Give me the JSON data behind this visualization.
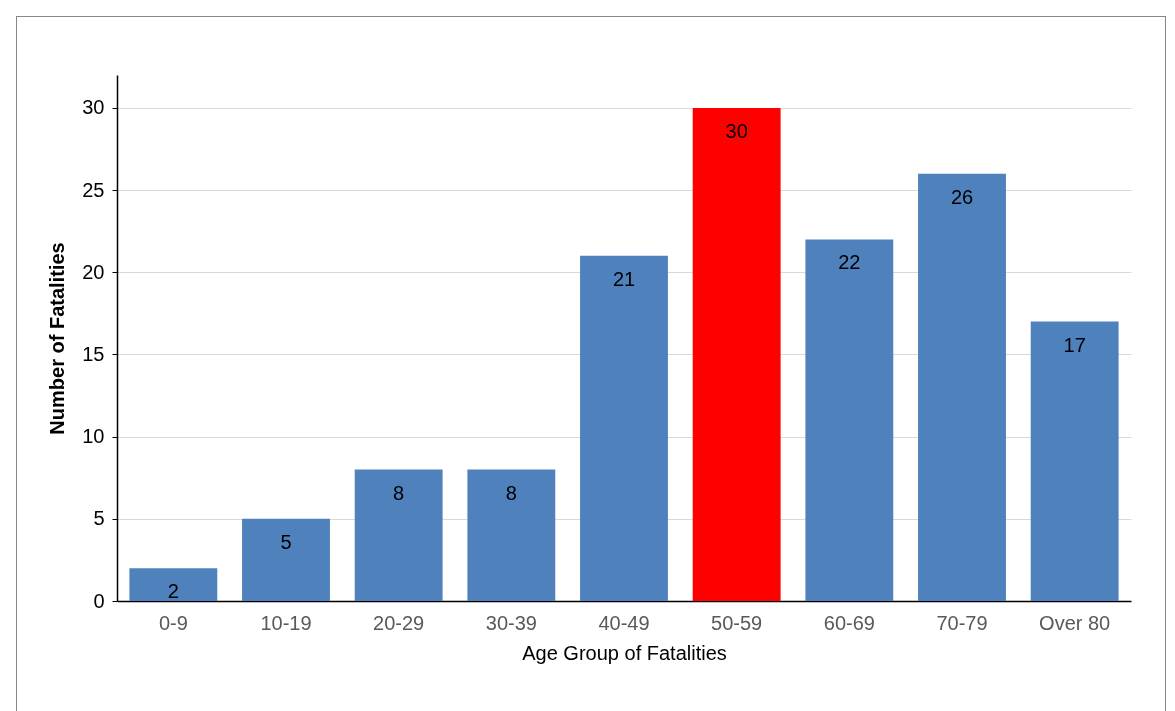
{
  "chart_data": {
    "type": "bar",
    "xlabel": "Age Group of Fatalities",
    "ylabel": "Number of Fatalities",
    "categories": [
      "0-9",
      "10-19",
      "20-29",
      "30-39",
      "40-49",
      "50-59",
      "60-69",
      "70-79",
      "Over 80"
    ],
    "values": [
      2,
      5,
      8,
      8,
      21,
      30,
      22,
      26,
      17
    ],
    "colors": [
      "#4f81bd",
      "#4f81bd",
      "#4f81bd",
      "#4f81bd",
      "#4f81bd",
      "#ff0000",
      "#4f81bd",
      "#4f81bd",
      "#4f81bd"
    ],
    "ylim": [
      0,
      32
    ],
    "yticks": [
      0,
      5,
      10,
      15,
      20,
      25,
      30
    ],
    "grid": "y",
    "data_labels": true
  }
}
